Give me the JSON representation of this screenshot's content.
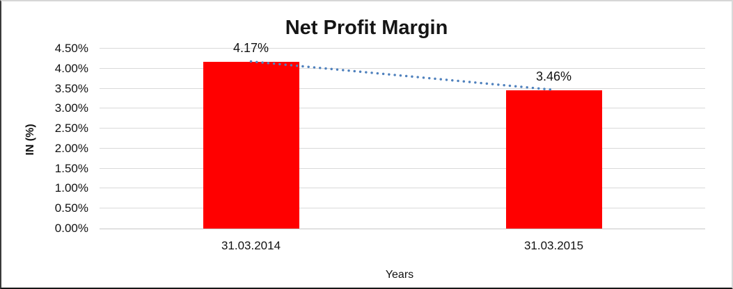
{
  "chart_data": {
    "type": "bar",
    "title": "Net Profit Margin",
    "categories": [
      "31.03.2014",
      "31.03.2015"
    ],
    "series": [
      {
        "name": "Net Profit Margin",
        "values": [
          4.17,
          3.46
        ]
      }
    ],
    "values": [
      4.17,
      3.46
    ],
    "data_labels": [
      "4.17%",
      "3.46%"
    ],
    "xlabel": "Years",
    "ylabel": "IN (%)",
    "ylim": [
      0,
      4.5
    ],
    "ytick_labels": [
      "0.00%",
      "0.50%",
      "1.00%",
      "1.50%",
      "2.00%",
      "2.50%",
      "3.00%",
      "3.50%",
      "4.00%",
      "4.50%"
    ],
    "grid": true,
    "legend": false,
    "bar_color": "#FF0000",
    "grid_color": "#D9D9D9",
    "axis_line_color": "#C6C6C6",
    "text_color": "#111111",
    "trendline": {
      "style": "dotted",
      "color": "#4F81BD",
      "from": 4.17,
      "to": 3.46
    }
  }
}
